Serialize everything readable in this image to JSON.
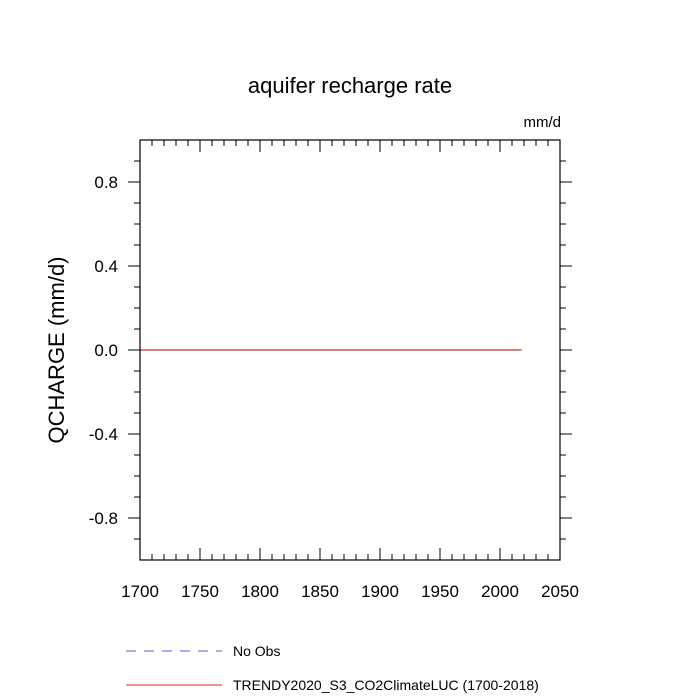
{
  "chart_data": {
    "type": "line",
    "title": "aquifer recharge rate",
    "units": "mm/d",
    "xlabel": "",
    "ylabel": "QCHARGE  (mm/d)",
    "xlim": [
      1700,
      2050
    ],
    "ylim": [
      -1.0,
      1.0
    ],
    "xticks": [
      1700,
      1750,
      1800,
      1850,
      1900,
      1950,
      2000,
      2050
    ],
    "xtick_labels": [
      "1700",
      "1750",
      "1800",
      "1850",
      "1900",
      "1950",
      "2000",
      "2050"
    ],
    "yticks": [
      0.8,
      0.4,
      0.0,
      -0.4,
      -0.8
    ],
    "ytick_labels": [
      "0.8",
      "0.4",
      "0.0",
      "-0.4",
      "-0.8"
    ],
    "grid": false,
    "legend_position": "bottom",
    "series": [
      {
        "name": "No Obs",
        "color": "#7b7bd6",
        "dash": "dashed",
        "x": [],
        "y": []
      },
      {
        "name": "TRENDY2020_S3_CO2ClimateLUC (1700-2018)",
        "color": "#d9534f",
        "dash": "solid",
        "x": [
          1700,
          1750,
          1800,
          1850,
          1900,
          1950,
          2000,
          2018
        ],
        "y": [
          0,
          0,
          0,
          0,
          0,
          0,
          0,
          0
        ]
      }
    ]
  }
}
